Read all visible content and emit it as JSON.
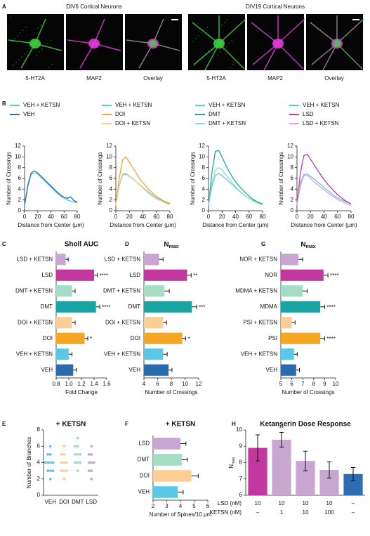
{
  "panel_labels": [
    "A",
    "B",
    "C",
    "D",
    "E",
    "F",
    "G",
    "H"
  ],
  "figure_a": {
    "groups": [
      {
        "title": "DIV6 Cortical Neurons",
        "images": [
          "5-HT2A",
          "MAP2",
          "Overlay"
        ]
      },
      {
        "title": "DIV19 Cortical Neurons",
        "images": [
          "5-HT2A",
          "MAP2",
          "Overlay"
        ]
      }
    ]
  },
  "chart_data": [
    {
      "type": "line",
      "xlabel": "Distance from Center (μm)",
      "ylabel": "Number of Crossings",
      "x": [
        0,
        5,
        10,
        15,
        20,
        25,
        30,
        35,
        40,
        45,
        50,
        55,
        60,
        65,
        70,
        75,
        80
      ],
      "xlim": [
        0,
        80
      ],
      "xticks": [
        0,
        20,
        40,
        60,
        80
      ],
      "ylim": [
        0,
        12
      ],
      "yticks": [
        0,
        2,
        4,
        6,
        8,
        10,
        12
      ],
      "series": [
        {
          "name": "VEH + KETSN",
          "color": "#5bc8e8",
          "values": [
            1,
            4.5,
            6.8,
            7.0,
            6.8,
            6.2,
            5.6,
            5.0,
            4.4,
            3.8,
            3.2,
            2.7,
            2.3,
            2.0,
            1.8,
            1.6,
            1.5
          ]
        },
        {
          "name": "VEH",
          "color": "#2b6cb0",
          "values": [
            1,
            4.8,
            7.0,
            7.4,
            7.0,
            6.4,
            5.8,
            5.2,
            4.6,
            4.0,
            3.4,
            2.9,
            2.5,
            2.3,
            2.6,
            1.9,
            1.6
          ]
        }
      ]
    },
    {
      "type": "line",
      "xlabel": "Distance from Center (μm)",
      "ylabel": "Number of Crossings",
      "x": [
        0,
        5,
        10,
        15,
        20,
        25,
        30,
        35,
        40,
        45,
        50,
        55,
        60,
        65,
        70,
        75,
        80
      ],
      "xlim": [
        0,
        80
      ],
      "xticks": [
        0,
        20,
        40,
        60,
        80
      ],
      "ylim": [
        0,
        12
      ],
      "yticks": [
        0,
        2,
        4,
        6,
        8,
        10,
        12
      ],
      "series": [
        {
          "name": "VEH + KETSN",
          "color": "#5bc8e8",
          "values": [
            1,
            4.6,
            6.6,
            6.8,
            6.4,
            5.9,
            5.4,
            4.9,
            4.3,
            3.8,
            3.3,
            2.8,
            2.4,
            2.1,
            1.8,
            1.5,
            1.3
          ]
        },
        {
          "name": "DOI",
          "color": "#f5a623",
          "values": [
            1,
            6,
            9.5,
            10,
            9.0,
            8,
            7,
            6,
            5.2,
            4.5,
            3.8,
            3.2,
            2.7,
            2.3,
            1.9,
            1.6,
            1.4
          ]
        },
        {
          "name": "DOI + KETSN",
          "color": "#f7cf8f",
          "values": [
            1,
            4.8,
            6.9,
            7.0,
            6.5,
            6.0,
            5.4,
            4.8,
            4.2,
            3.6,
            3.1,
            2.6,
            2.2,
            1.9,
            1.6,
            1.3,
            1.1
          ]
        }
      ]
    },
    {
      "type": "line",
      "xlabel": "Distance from Center (μm)",
      "ylabel": "Number of Crossings",
      "x": [
        0,
        5,
        10,
        15,
        20,
        25,
        30,
        35,
        40,
        45,
        50,
        55,
        60,
        65,
        70,
        75,
        80
      ],
      "xlim": [
        0,
        80
      ],
      "xticks": [
        0,
        20,
        40,
        60,
        80
      ],
      "ylim": [
        0,
        12
      ],
      "yticks": [
        0,
        2,
        4,
        6,
        8,
        10,
        12
      ],
      "series": [
        {
          "name": "VEH + KETSN",
          "color": "#5bc8e8",
          "values": [
            1,
            4.5,
            6.6,
            6.9,
            6.5,
            6.0,
            5.4,
            4.9,
            4.3,
            3.7,
            3.2,
            2.7,
            2.3,
            2.0,
            1.7,
            1.5,
            1.3
          ]
        },
        {
          "name": "DMT",
          "color": "#1aa3a3",
          "values": [
            1,
            7,
            11,
            11.2,
            10,
            8.6,
            7.4,
            6.3,
            5.4,
            4.6,
            3.9,
            3.3,
            2.7,
            2.2,
            1.8,
            1.5,
            1.2
          ]
        },
        {
          "name": "DMT + KETSN",
          "color": "#8fd8c8",
          "values": [
            1,
            5,
            7.5,
            8,
            7.6,
            6.8,
            6,
            5.2,
            4.5,
            3.8,
            3.2,
            2.7,
            2.3,
            1.9,
            1.6,
            1.3,
            1.1
          ]
        }
      ]
    },
    {
      "type": "line",
      "xlabel": "Distance from Center (μm)",
      "ylabel": "Number of Crossings",
      "x": [
        0,
        5,
        10,
        15,
        20,
        25,
        30,
        35,
        40,
        45,
        50,
        55,
        60,
        65,
        70,
        75,
        80
      ],
      "xlim": [
        0,
        80
      ],
      "xticks": [
        0,
        20,
        40,
        60,
        80
      ],
      "ylim": [
        0,
        12
      ],
      "yticks": [
        0,
        2,
        4,
        6,
        8,
        10,
        12
      ],
      "series": [
        {
          "name": "VEH + KETSN",
          "color": "#5bc8e8",
          "values": [
            1,
            4.6,
            6.5,
            6.8,
            6.4,
            5.9,
            5.4,
            4.9,
            4.3,
            3.8,
            3.3,
            2.8,
            2.4,
            2.1,
            1.8,
            1.5,
            1.3
          ]
        },
        {
          "name": "LSD",
          "color": "#c2389e",
          "values": [
            1,
            7,
            10.2,
            10.5,
            9.6,
            8.6,
            7.6,
            6.7,
            5.8,
            5,
            4.3,
            3.6,
            3,
            2.5,
            2,
            1.6,
            1.3
          ]
        },
        {
          "name": "LSD + KETSN",
          "color": "#d7a8d8",
          "values": [
            1,
            5,
            6.8,
            6.6,
            6,
            5.4,
            4.9,
            4.4,
            3.9,
            3.4,
            2.9,
            2.5,
            2.1,
            1.8,
            1.5,
            1.2,
            1
          ]
        }
      ]
    },
    {
      "type": "hbar",
      "title": "Sholl AUC",
      "xlabel": "Fold Change",
      "categories": [
        "LSD + KETSN",
        "LSD",
        "DMT + KETSN",
        "DMT",
        "DOI + KETSN",
        "DOI",
        "VEH + KETSN",
        "VEH"
      ],
      "values": [
        0.95,
        1.4,
        1.05,
        1.43,
        1.05,
        1.25,
        1.0,
        1.07
      ],
      "errors": [
        0.04,
        0.05,
        0.05,
        0.06,
        0.05,
        0.05,
        0.05,
        0.05
      ],
      "colors": [
        "#c9a6d2",
        "#c2389e",
        "#a5dcc5",
        "#1aa3a3",
        "#fbcf93",
        "#f5a623",
        "#5bc8e8",
        "#2b6cb0"
      ],
      "annotations": [
        null,
        "****",
        null,
        "****",
        null,
        "*",
        null,
        null
      ],
      "xlim": [
        0.8,
        1.6
      ],
      "xticks": [
        0.8,
        {
          "value": 1.0,
          "label": "1.0"
        },
        1.2,
        1.4,
        1.6
      ]
    },
    {
      "type": "hbar",
      "title": "N",
      "title_sub": "max",
      "xlabel": "Number of Crossings",
      "categories": [
        "LSD + KETSN",
        "LSD",
        "DMT + KETSN",
        "DMT",
        "DOI + KETSN",
        "DOI",
        "VEH + KETSN",
        "VEH"
      ],
      "values": [
        6.2,
        10.3,
        7.0,
        11.0,
        6.8,
        9.6,
        6.8,
        7.6
      ],
      "errors": [
        0.6,
        0.6,
        0.7,
        0.7,
        0.5,
        0.5,
        0.6,
        0.5
      ],
      "colors": [
        "#c9a6d2",
        "#c2389e",
        "#a5dcc5",
        "#1aa3a3",
        "#fbcf93",
        "#f5a623",
        "#5bc8e8",
        "#2b6cb0"
      ],
      "annotations": [
        null,
        "**",
        null,
        "***",
        null,
        "*",
        null,
        null
      ],
      "xlim": [
        4,
        12
      ],
      "xticks": [
        4,
        6,
        8,
        10,
        12
      ]
    },
    {
      "type": "hbar",
      "title": "N",
      "title_sub": "max",
      "xlabel": "Number of Crossings",
      "categories": [
        "NOR + KETSN",
        "NOR",
        "MDMA + KETSN",
        "MDMA",
        "PSI + KETSN",
        "PSI",
        "VEH + KETSN",
        "VEH"
      ],
      "values": [
        6.6,
        8.9,
        7.0,
        8.6,
        6.0,
        8.6,
        6.2,
        6.4
      ],
      "errors": [
        0.4,
        0.4,
        0.4,
        0.4,
        0.3,
        0.4,
        0.3,
        0.3
      ],
      "colors": [
        "#c9a6d2",
        "#c2389e",
        "#a5dcc5",
        "#1aa3a3",
        "#fbcf93",
        "#f5a623",
        "#5bc8e8",
        "#2b6cb0"
      ],
      "annotations": [
        null,
        "****",
        null,
        "****",
        null,
        "****",
        null,
        null
      ],
      "xlim": [
        5,
        10
      ],
      "xticks": [
        5,
        6,
        7,
        8,
        9,
        10
      ]
    },
    {
      "type": "strip",
      "title": "+ KETSN",
      "ylabel": "Number of Branches",
      "categories": [
        "VEH",
        "DOI",
        "DMT",
        "LSD"
      ],
      "colors": [
        "#5bc8e8",
        "#fbcf93",
        "#a5dcc5",
        "#c9a6d2"
      ],
      "values": [
        [
          2,
          3,
          3,
          3,
          4,
          4,
          4,
          4,
          5,
          5,
          6
        ],
        [
          2,
          3,
          3,
          3,
          4,
          4,
          4,
          5,
          5,
          6
        ],
        [
          3,
          4,
          4,
          4,
          5,
          5,
          5,
          6,
          6,
          7
        ],
        [
          2,
          3,
          3,
          4,
          4,
          4,
          5,
          5,
          6
        ]
      ],
      "ylim": [
        0,
        8
      ],
      "yticks": [
        0,
        2,
        4,
        6,
        8
      ]
    },
    {
      "type": "hbar",
      "title": "+ KETSN",
      "xlabel": "Number of Spines/10 μm",
      "categories": [
        "LSD",
        "DMT",
        "DOI",
        "VEH"
      ],
      "values": [
        4.0,
        4.1,
        4.8,
        3.8
      ],
      "errors": [
        0.4,
        0.4,
        0.5,
        0.4
      ],
      "colors": [
        "#c9a6d2",
        "#a5dcc5",
        "#fbcf93",
        "#5bc8e8"
      ],
      "xlim": [
        2,
        6
      ],
      "xticks": [
        2,
        3,
        4,
        5,
        6
      ]
    },
    {
      "type": "bar",
      "title": "Ketanserin Dose Response",
      "ylabel": "N",
      "ylabel_sub": "max",
      "values": [
        8.9,
        9.4,
        8.1,
        7.55,
        7.3
      ],
      "errors": [
        0.8,
        0.45,
        0.6,
        0.5,
        0.4
      ],
      "colors": [
        "#c2389e",
        "#c9a6d2",
        "#c9a6d2",
        "#c9a6d2",
        "#2e6db3"
      ],
      "annotations": [
        null,
        "**",
        null,
        null,
        null
      ],
      "table": {
        "row_labels": [
          "LSD (nM)",
          "KETSN (nM)"
        ],
        "rows": [
          [
            "10",
            "10",
            "10",
            "10",
            "–"
          ],
          [
            "–",
            "1",
            "10",
            "100",
            "–"
          ]
        ]
      },
      "ylim": [
        6,
        10
      ],
      "yticks": [
        6,
        7,
        8,
        9,
        10
      ]
    }
  ]
}
